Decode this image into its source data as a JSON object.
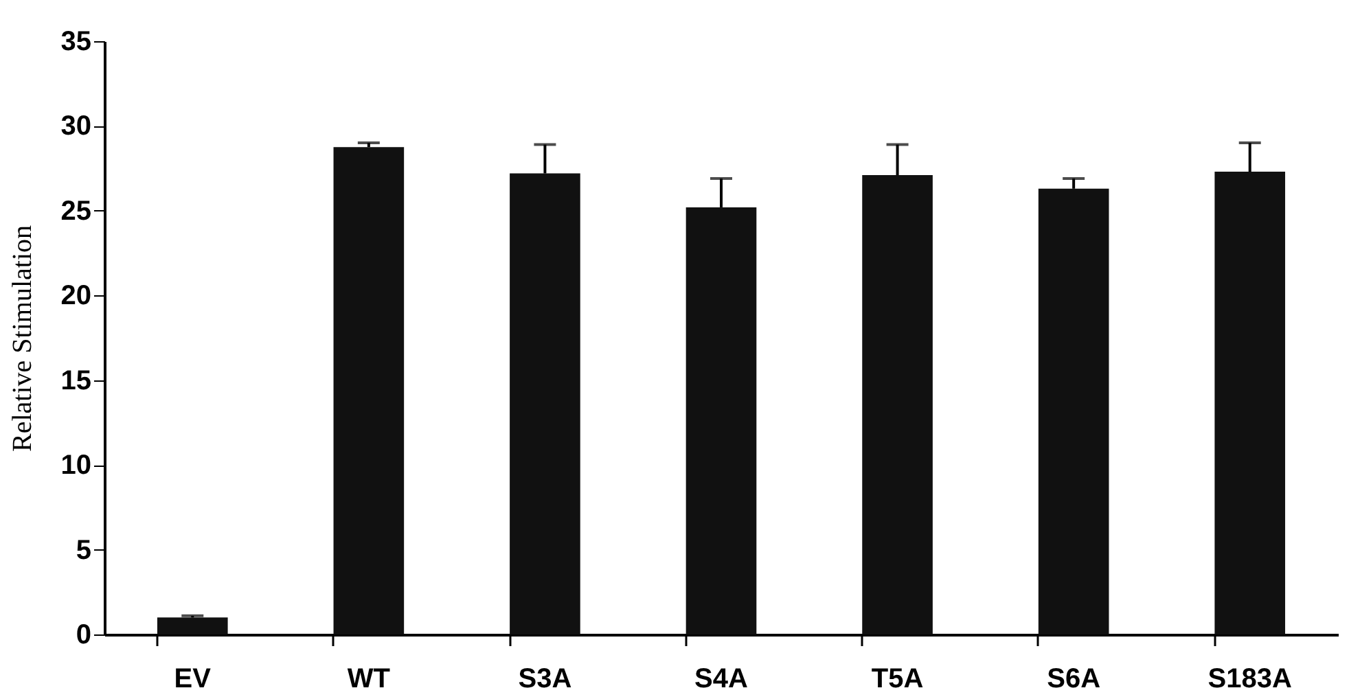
{
  "chart_data": {
    "type": "bar",
    "ylabel": "Relative Stimulation",
    "categories": [
      "EV",
      "WT",
      "S3A",
      "S4A",
      "T5A",
      "S6A",
      "S183A"
    ],
    "values": [
      1.0,
      28.75,
      27.2,
      25.2,
      27.1,
      26.3,
      27.3
    ],
    "errors": [
      [
        1.0,
        1.1
      ],
      [
        28.75,
        29.0
      ],
      [
        27.2,
        28.9
      ],
      [
        25.2,
        26.9
      ],
      [
        27.1,
        28.9
      ],
      [
        26.3,
        26.9
      ],
      [
        27.3,
        29.0
      ]
    ],
    "color": "#111111",
    "ylim": [
      0,
      35
    ],
    "yticks": [
      0,
      5,
      10,
      15,
      20,
      25,
      30,
      35
    ],
    "grid": false
  }
}
